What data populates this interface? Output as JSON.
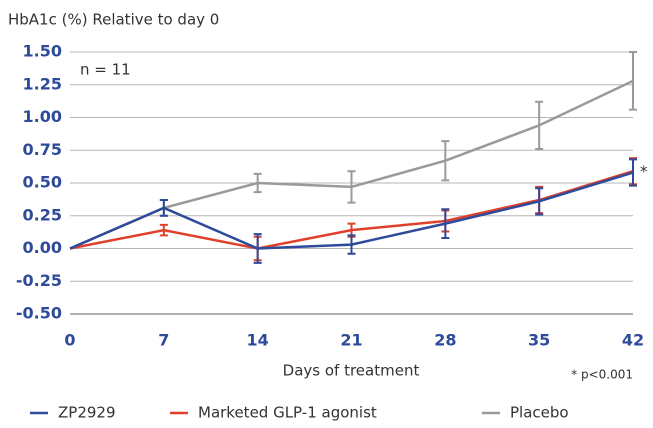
{
  "chart_data": {
    "type": "line",
    "y_axis_title": "HbA1c (%) Relative to day 0",
    "x_label": "Days of treatment",
    "annotations": [
      "n = 11",
      "*",
      "* p<0.001"
    ],
    "x": [
      0,
      7,
      14,
      21,
      28,
      35,
      42
    ],
    "xlim": [
      0,
      42
    ],
    "xticks": [
      0,
      7,
      14,
      21,
      28,
      35,
      42
    ],
    "ylim": [
      -0.5,
      1.5
    ],
    "yticks": [
      {
        "value": -0.5,
        "label": "-0.50"
      },
      {
        "value": -0.25,
        "label": "-0.25"
      },
      {
        "value": 0,
        "label": "0.00"
      },
      {
        "value": 0.25,
        "label": "0.25"
      },
      {
        "value": 0.5,
        "label": "0.50"
      },
      {
        "value": 0.75,
        "label": "0.75"
      },
      {
        "value": 1,
        "label": "1.00"
      },
      {
        "value": 1.25,
        "label": "1.25"
      },
      {
        "value": 1.5,
        "label": "1.50"
      }
    ],
    "grid": true,
    "legend": "bottom",
    "series": [
      {
        "name": "Placebo",
        "color": "#9a9a9a",
        "values": [
          0,
          0.31,
          0.5,
          0.47,
          0.67,
          0.94,
          1.28
        ],
        "errors": [
          null,
          0.06,
          0.07,
          0.12,
          0.15,
          0.18,
          0.22
        ]
      },
      {
        "name": "Marketed GLP-1 agonist",
        "color": "#e0402a",
        "values": [
          0,
          0.14,
          0,
          0.14,
          0.21,
          0.37,
          0.59
        ],
        "errors": [
          null,
          0.04,
          0.09,
          0.05,
          0.08,
          0.1,
          0.1
        ]
      },
      {
        "name": "ZP2929",
        "color": "#2d4a9b",
        "values": [
          0,
          0.31,
          0,
          0.03,
          0.19,
          0.36,
          0.58
        ],
        "errors": [
          null,
          0.06,
          0.11,
          0.07,
          0.11,
          0.1,
          0.1
        ]
      }
    ]
  }
}
